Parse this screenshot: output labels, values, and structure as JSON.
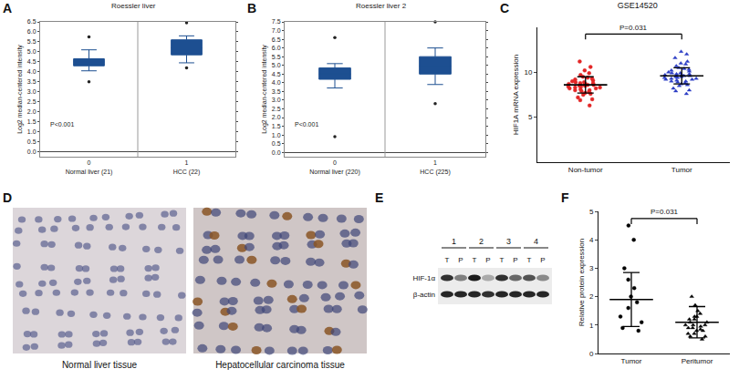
{
  "chart_data": [
    {
      "panel": "A",
      "type": "box",
      "title": "Roessler liver",
      "y_label": "Log2 median-centered intensity",
      "categories": [
        "Normal liver (21)",
        "HCC (22)"
      ],
      "group_numbers": [
        "0",
        "1"
      ],
      "q1": [
        4.3,
        4.85
      ],
      "median": [
        4.5,
        5.2
      ],
      "q3": [
        4.65,
        5.6
      ],
      "lower_whisker": [
        4.05,
        4.45
      ],
      "upper_whisker": [
        5.1,
        5.8
      ],
      "outliers": [
        [
          3.5,
          5.75
        ],
        [
          4.2,
          6.45
        ]
      ],
      "color": "#1d4f91",
      "ylim": [
        -0.25,
        6.5
      ],
      "yticks": [
        {
          "value": 0,
          "label": "0.0"
        },
        0.5,
        {
          "value": 1,
          "label": "1.0"
        },
        1.5,
        {
          "value": 2,
          "label": "2.0"
        },
        2.5,
        {
          "value": 3,
          "label": "3.0"
        },
        3.5,
        {
          "value": 4,
          "label": "4.0"
        },
        4.5,
        {
          "value": 5,
          "label": "5.0"
        },
        5.5,
        {
          "value": 6,
          "label": "6.0"
        },
        6.5
      ],
      "annotations": [
        "P<0.001"
      ],
      "grid": false
    },
    {
      "panel": "B",
      "type": "box",
      "title": "Roessler liver 2",
      "y_label": "Log2 median-centered intensity",
      "categories": [
        "Normal liver (220)",
        "HCC (225)"
      ],
      "group_numbers": [
        "0",
        "1"
      ],
      "q1": [
        4.2,
        4.5
      ],
      "median": [
        4.5,
        4.95
      ],
      "q3": [
        4.85,
        5.5
      ],
      "lower_whisker": [
        3.7,
        3.9
      ],
      "upper_whisker": [
        5.1,
        6.0
      ],
      "outliers": [
        [
          0.9,
          6.6
        ],
        [
          2.8,
          7.5
        ]
      ],
      "color": "#1d4f91",
      "ylim": [
        -0.25,
        7.5
      ],
      "yticks": [
        {
          "value": 0,
          "label": "0.0"
        },
        0.5,
        {
          "value": 1,
          "label": "1.0"
        },
        1.5,
        {
          "value": 2,
          "label": "2.0"
        },
        2.5,
        {
          "value": 3,
          "label": "3.0"
        },
        3.5,
        {
          "value": 4,
          "label": "4.0"
        },
        4.5,
        {
          "value": 5,
          "label": "5.0"
        },
        5.5,
        {
          "value": 6,
          "label": "6.0"
        },
        6.5,
        {
          "value": 7,
          "label": "7.0"
        },
        7.5
      ],
      "annotations": [
        "P<0.001"
      ],
      "grid": false
    },
    {
      "panel": "C",
      "type": "dot",
      "title": "GSE14520",
      "y_label": "HIF1A mRNA expression",
      "series": [
        {
          "name": "Non-tumor",
          "color": "#e32626",
          "marker": "circle",
          "mean": 8.6,
          "sd": 0.9,
          "values": [
            8.6,
            8.2,
            9.1,
            7.9,
            8.8,
            8.4,
            9.5,
            7.5,
            8.0,
            8.7,
            9.0,
            8.3,
            10.2,
            6.9,
            8.5,
            8.9,
            7.8,
            9.3,
            8.1,
            8.6,
            11.2,
            6.3,
            8.4,
            9.7,
            7.6,
            8.8,
            8.2,
            9.9,
            7.2,
            8.5,
            8.7,
            10.6,
            7.0,
            8.3,
            9.2,
            8.0,
            8.6,
            9.4,
            7.7,
            8.9
          ]
        },
        {
          "name": "Tumor",
          "color": "#2b3cc4",
          "marker": "triangle-up",
          "mean": 9.6,
          "sd": 0.9,
          "values": [
            9.6,
            9.2,
            10.1,
            8.9,
            9.8,
            9.4,
            10.5,
            8.5,
            9.0,
            9.7,
            10.0,
            9.3,
            11.2,
            8.0,
            9.5,
            9.9,
            8.8,
            10.3,
            9.1,
            9.6,
            12.3,
            7.6,
            9.4,
            10.7,
            8.6,
            9.8,
            9.2,
            10.9,
            8.2,
            9.5,
            9.7,
            11.6,
            7.9,
            9.3,
            10.2,
            9.0,
            9.6,
            10.4,
            8.7,
            9.9,
            12.0,
            11.0
          ]
        }
      ],
      "ylim": [
        0,
        15
      ],
      "yticks": [
        5,
        10
      ],
      "annotations": [
        "P=0.031"
      ],
      "grid": false
    },
    {
      "panel": "F",
      "type": "dot",
      "y_label": "Relative protein expression",
      "series": [
        {
          "name": "Tumor",
          "color": "#000000",
          "marker": "circle",
          "mean": 1.9,
          "sd": 0.95,
          "values": [
            4.5,
            4.0,
            3.0,
            2.6,
            2.3,
            2.0,
            1.8,
            1.6,
            1.3,
            1.1,
            0.9,
            0.8
          ]
        },
        {
          "name": "Peritumor",
          "color": "#000000",
          "marker": "triangle-up",
          "mean": 1.1,
          "sd": 0.55,
          "values": [
            2.0,
            1.7,
            1.5,
            1.4,
            1.3,
            1.3,
            1.2,
            1.1,
            1.1,
            1.0,
            1.0,
            0.9,
            0.9,
            0.8,
            0.8,
            0.7,
            0.7,
            0.6,
            0.6,
            0.5,
            1.2,
            1.0,
            0.95,
            0.85
          ]
        }
      ],
      "ylim": [
        0,
        5
      ],
      "yticks": [
        0,
        1,
        2,
        3,
        4,
        5
      ],
      "annotations": [
        "P=0.031"
      ],
      "grid": false
    }
  ],
  "histology": {
    "panel": "D",
    "captions": [
      "Normal liver tissue",
      "Hepatocellular carcinoma tissue"
    ]
  },
  "western_blot": {
    "panel": "E",
    "lanes": [
      "1",
      "2",
      "3",
      "4"
    ],
    "lane_columns": [
      "T",
      "P"
    ],
    "rows": [
      {
        "label": "HIF-1α",
        "density": [
          0.85,
          0.5,
          0.95,
          0.3,
          0.85,
          0.6,
          0.7,
          0.45
        ]
      },
      {
        "label": "β-actin",
        "density": [
          0.9,
          0.9,
          0.9,
          0.85,
          0.9,
          0.9,
          0.9,
          0.9
        ]
      }
    ]
  }
}
